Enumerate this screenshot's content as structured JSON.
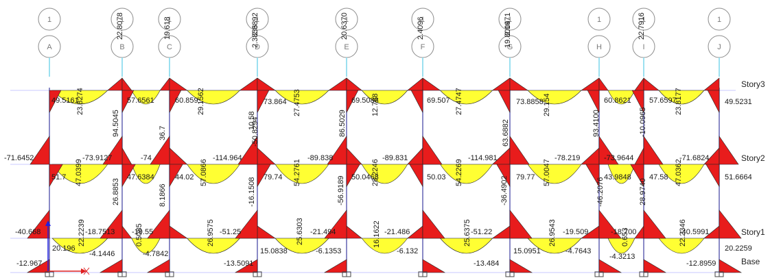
{
  "colors": {
    "background": "#ffffff",
    "beam_moment_fill": "#ffff33",
    "column_moment_fill": "#e81c1c",
    "diagram_outline": "#222222",
    "frame_line": "#4a4aa8",
    "story_line": "#c8c8ff",
    "bubble_stroke": "#8c8c8c",
    "support_color": "#444444",
    "axis_x": "#e02020",
    "axis_y": "#2020e0"
  },
  "icons": {
    "support": "fixed-support-icon",
    "axis": "global-axis-icon"
  },
  "grid": {
    "bubble_top": [
      "1",
      "1",
      "1",
      "1",
      "1",
      "1",
      "1",
      "1",
      "1",
      "1"
    ],
    "bubble_bottom": [
      "A",
      "B",
      "C",
      "D",
      "E",
      "F",
      "G",
      "H",
      "I",
      "J"
    ]
  },
  "stories": [
    "Story3",
    "Story2",
    "Story1",
    "Base"
  ],
  "labels": [
    "22.8078",
    "19.618",
    "2.3892",
    "2.3836",
    "20.6370",
    "2.4096",
    "2.1971",
    "19.8004",
    "22.7916",
    "49.5161",
    "23.8274",
    "57.6561",
    "60.859",
    "29.1562",
    "73.864",
    "27.4753",
    "69.5088",
    "12.788",
    "69.507",
    "27.4747",
    "73.8858",
    "29.154",
    "60.8621",
    "57.6597",
    "23.8177",
    "49.5231",
    "94.5045",
    "36.7",
    "10.58",
    "-50.8294",
    "86.5029",
    "63.6882",
    "93.4100",
    "-10.0965",
    "-71.6452",
    "-73.9127",
    "-74",
    "-114.964",
    "-89.838",
    "-89.831",
    "-114.981",
    "-78.219",
    "-73.9644",
    "-71.6824",
    "51.7",
    "47.0399",
    "47.6384",
    "44.02",
    "57.0866",
    "79.74",
    "54.2761",
    "50.0468",
    "28.2246",
    "50.03",
    "54.2269",
    "79.77",
    "57.0047",
    "43.9848",
    "47.58",
    "47.0362",
    "51.6664",
    "26.8853",
    "8.1866",
    "-16.1508",
    "-56.9189",
    "-36.4902",
    "-46.2076",
    "28.9740",
    "-40.668",
    "-18.7513",
    "-19.55",
    "-51.25",
    "-21.494",
    "-21.486",
    "-51.22",
    "-19.509",
    "-18.700",
    "-40.5991",
    "20.196",
    "22.2239",
    "-4.1446",
    "0.5085",
    "-4.7842",
    "26.9575",
    "15.0838",
    "-6.1353",
    "25.6303",
    "16.1622",
    "-6.132",
    "25.6375",
    "15.0951",
    "26.9543",
    "-4.7643",
    "0.653",
    "-4.3213",
    "22.2346",
    "20.2259",
    "-12.967",
    "-13.5091",
    "-13.484",
    "-12.8959"
  ]
}
